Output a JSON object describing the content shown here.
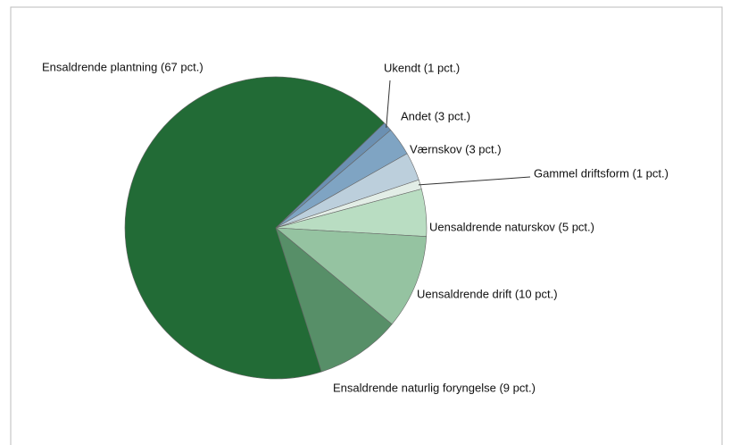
{
  "chart_data": {
    "type": "pie",
    "categories": [
      "Ukendt (1 pct.)",
      "Andet (3 pct.)",
      "Værnskov (3 pct.)",
      "Gammel driftsform (1 pct.)",
      "Uensaldrende naturskov (5 pct.)",
      "Uensaldrende drift (10 pct.)",
      "Ensaldrende naturlig foryngelse (9 pct.)",
      "Ensaldrende plantning (67 pct.)"
    ],
    "values": [
      1,
      3,
      3,
      1,
      5,
      10,
      9,
      67
    ],
    "colors": [
      "#6b90b2",
      "#7fa4c3",
      "#bccfdc",
      "#e2ede6",
      "#b9ddc2",
      "#95c3a1",
      "#578f68",
      "#226b36"
    ]
  }
}
